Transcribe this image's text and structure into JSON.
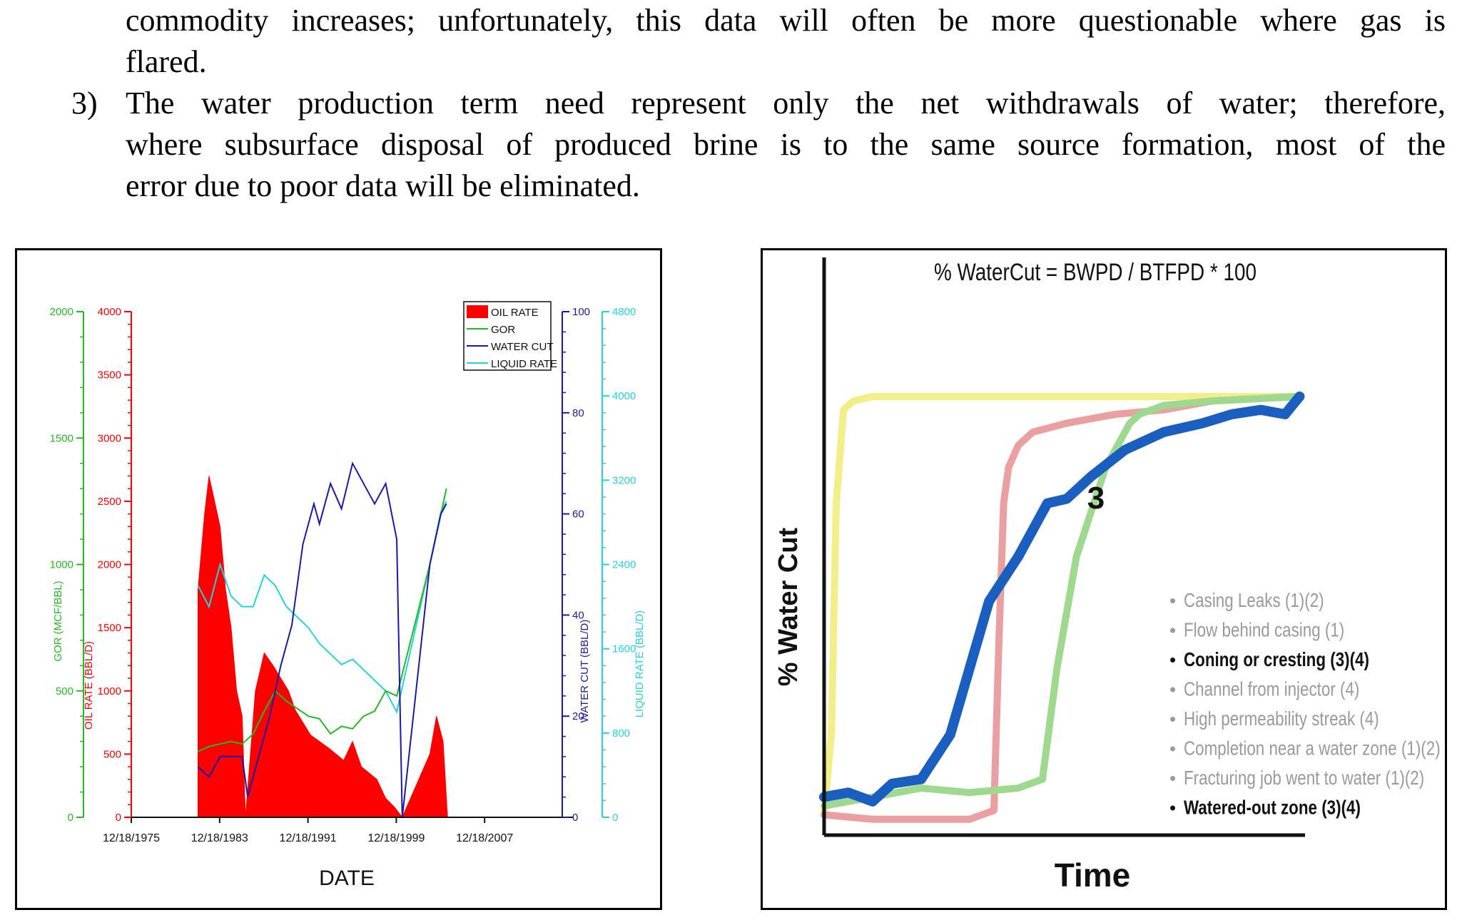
{
  "text": {
    "line1": "commodity increases; unfortunately, this data will often be more questionable where gas is",
    "line2": "flared.",
    "item3_number": "3)",
    "item3_line1": "The water production term need represent only the net withdrawals of water; therefore,",
    "item3_line2": "where subsurface disposal of produced brine is to the same source formation, most of the",
    "item3_line3": "error due to poor data will be eliminated."
  },
  "colors": {
    "oil": "#ff0000",
    "gor": "#22bb22",
    "water_cut": "#1a1aa6",
    "liquid": "#22d3e0",
    "curve_yellow": "#f2ee8a",
    "curve_red": "#eaa0a0",
    "curve_green": "#9fd88f",
    "curve_blue": "#1a5fc0"
  },
  "chart_data": [
    {
      "type": "area",
      "xlabel": "DATE",
      "x_ticks": [
        "12/18/1975",
        "12/18/1983",
        "12/18/1991",
        "12/18/1999",
        "12/18/2007"
      ],
      "xlim": [
        1975.96,
        2015.96
      ],
      "axes": [
        {
          "label": "GOR (MCF/BBL)",
          "ticks": [
            "0",
            "500",
            "1000",
            "1500",
            "2000"
          ],
          "ylim": [
            0,
            2000
          ],
          "color": "#22bb22"
        },
        {
          "label": "OIL RATE (BBL/D)",
          "ticks": [
            "0",
            "500",
            "1000",
            "1500",
            "2000",
            "2500",
            "3000",
            "3500",
            "4000"
          ],
          "ylim": [
            0,
            4000
          ],
          "color": "#ff0000"
        },
        {
          "label": "WATER CUT (BBL/D)",
          "ticks": [
            "0",
            "20",
            "40",
            "60",
            "80",
            "100"
          ],
          "ylim": [
            0,
            100
          ],
          "color": "#1a1aa6"
        },
        {
          "label": "LIQUID RATE (BBL/D)",
          "ticks": [
            "0",
            "800",
            "1600",
            "2400",
            "3200",
            "4000",
            "4800"
          ],
          "ylim": [
            0,
            4800
          ],
          "color": "#22d3e0"
        }
      ],
      "legend": [
        "OIL RATE",
        "GOR",
        "WATER CUT",
        "LIQUID RATE"
      ],
      "legend_position": "top-right",
      "series": [
        {
          "name": "OIL RATE",
          "x": [
            1982.0,
            1982.6,
            1983.0,
            1983.5,
            1984.0,
            1984.5,
            1985.0,
            1985.5,
            1986.0,
            1986.3,
            1987.2,
            1988.0,
            1988.8,
            1989.5,
            1990.2,
            1990.8,
            1991.5,
            1992.2,
            1993.0,
            1993.8,
            1994.5,
            1995.2,
            1996.0,
            1996.8,
            1997.5,
            1998.2,
            1999.0,
            1999.8,
            2000.5,
            2003.0,
            2003.6,
            2004.2,
            2004.6
          ],
          "y": [
            1800,
            2400,
            2700,
            2500,
            2300,
            1800,
            1500,
            1000,
            800,
            0,
            1000,
            1300,
            1200,
            1100,
            1000,
            850,
            750,
            650,
            600,
            550,
            500,
            450,
            600,
            400,
            350,
            300,
            150,
            80,
            0,
            500,
            800,
            600,
            0
          ]
        },
        {
          "name": "GOR",
          "x": [
            1982.0,
            1983.0,
            1984.0,
            1985.0,
            1986.0,
            1987.0,
            1988.0,
            1989.0,
            1990.0,
            1991.0,
            1992.0,
            1993.0,
            1994.0,
            1995.0,
            1996.0,
            1997.0,
            1998.0,
            1999.0,
            2000.0,
            2003.0,
            2004.0,
            2004.5
          ],
          "y": [
            260,
            280,
            290,
            300,
            290,
            330,
            420,
            500,
            460,
            430,
            400,
            390,
            330,
            360,
            350,
            400,
            420,
            500,
            480,
            1000,
            1200,
            1300
          ]
        },
        {
          "name": "WATER CUT",
          "x": [
            1982.0,
            1983.0,
            1984.0,
            1985.0,
            1986.0,
            1986.5,
            1987.5,
            1988.5,
            1989.5,
            1990.5,
            1991.0,
            1991.5,
            1992.5,
            1993.0,
            1994.0,
            1995.0,
            1996.0,
            1997.0,
            1998.0,
            1999.0,
            2000.0,
            2000.5,
            2003.0,
            2003.5,
            2004.0,
            2004.5
          ],
          "y": [
            10,
            8,
            12,
            12,
            12,
            4,
            12,
            20,
            30,
            38,
            46,
            54,
            62,
            58,
            66,
            61,
            70,
            66,
            62,
            66,
            55,
            0,
            50,
            55,
            60,
            62
          ]
        },
        {
          "name": "LIQUID RATE",
          "x": [
            1982.0,
            1983.0,
            1984.0,
            1985.0,
            1986.0,
            1987.0,
            1988.0,
            1989.0,
            1990.0,
            1991.0,
            1992.0,
            1993.0,
            1994.0,
            1995.0,
            1996.0,
            1997.0,
            1998.0,
            1999.0,
            2000.0,
            2003.0,
            2004.0,
            2004.5
          ],
          "y": [
            2200,
            2000,
            2400,
            2100,
            2000,
            2000,
            2300,
            2200,
            2000,
            1900,
            1800,
            1650,
            1550,
            1450,
            1500,
            1400,
            1300,
            1200,
            1000,
            2400,
            2900,
            3000
          ]
        }
      ]
    },
    {
      "type": "line",
      "title": "% WaterCut = BWPD / BTFPD * 100",
      "xlabel": "Time",
      "ylabel": "% Water Cut",
      "xlim": [
        0,
        100
      ],
      "ylim": [
        0,
        100
      ],
      "grid": false,
      "curve_label": "3",
      "legend": [
        {
          "text": "Casing Leaks (1)(2)",
          "emphasis": false
        },
        {
          "text": "Flow behind casing (1)",
          "emphasis": false
        },
        {
          "text": "Coning or cresting (3)(4)",
          "emphasis": true
        },
        {
          "text": "Channel from injector (4)",
          "emphasis": false
        },
        {
          "text": "High permeability streak (4)",
          "emphasis": false
        },
        {
          "text": "Completion near a water zone (1)(2)",
          "emphasis": false
        },
        {
          "text": "Fracturing job went to water (1)(2)",
          "emphasis": false
        },
        {
          "text": "Watered-out zone (3)(4)",
          "emphasis": true
        }
      ],
      "legend_bullet": "•",
      "legend_position": "bottom-right",
      "series": [
        {
          "x": [
            0,
            1.5,
            2.5,
            4,
            6,
            10,
            20,
            40,
            60,
            80,
            98
          ],
          "y": [
            2,
            20,
            72,
            93,
            95,
            96,
            96,
            96,
            96,
            96,
            96
          ]
        },
        {
          "x": [
            0,
            10,
            20,
            30,
            35,
            36,
            37,
            38,
            40,
            43,
            50,
            60,
            70,
            80,
            98
          ],
          "y": [
            2,
            1,
            1,
            1,
            3,
            40,
            72,
            80,
            85,
            88,
            90,
            92,
            93,
            95,
            96
          ]
        },
        {
          "x": [
            0,
            10,
            20,
            30,
            40,
            45,
            48,
            52,
            55,
            58,
            63,
            65,
            70,
            80,
            98
          ],
          "y": [
            4,
            6,
            8,
            7,
            8,
            10,
            35,
            60,
            70,
            80,
            90,
            92,
            94,
            95,
            96
          ]
        },
        {
          "x": [
            0,
            5,
            10,
            14,
            20,
            26,
            30,
            34,
            40,
            44,
            46,
            50,
            55,
            62,
            70,
            78,
            84,
            90,
            95,
            98
          ],
          "y": [
            6,
            7,
            5,
            9,
            10,
            20,
            35,
            50,
            60,
            68,
            72,
            73,
            78,
            84,
            88,
            90,
            92,
            93,
            92,
            96
          ]
        }
      ]
    }
  ]
}
